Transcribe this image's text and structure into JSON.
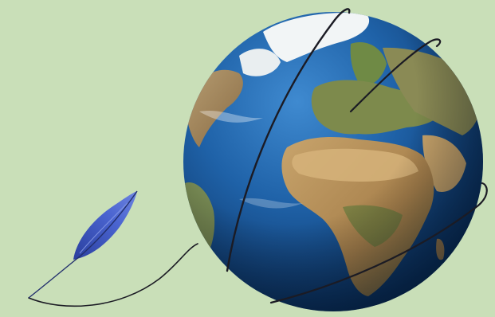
{
  "scene": {
    "background_color": "#c9dfb8",
    "subjects": [
      "globe-illustration",
      "quill-feather",
      "ink-line"
    ],
    "palette": {
      "ocean": "#1d5fa3",
      "ocean_dark": "#0b2f63",
      "land": "#b58f5a",
      "land_green": "#5d7f3a",
      "ice": "#f4f6f7",
      "feather": "#3f57c2",
      "ink": "#1b1b24"
    }
  }
}
